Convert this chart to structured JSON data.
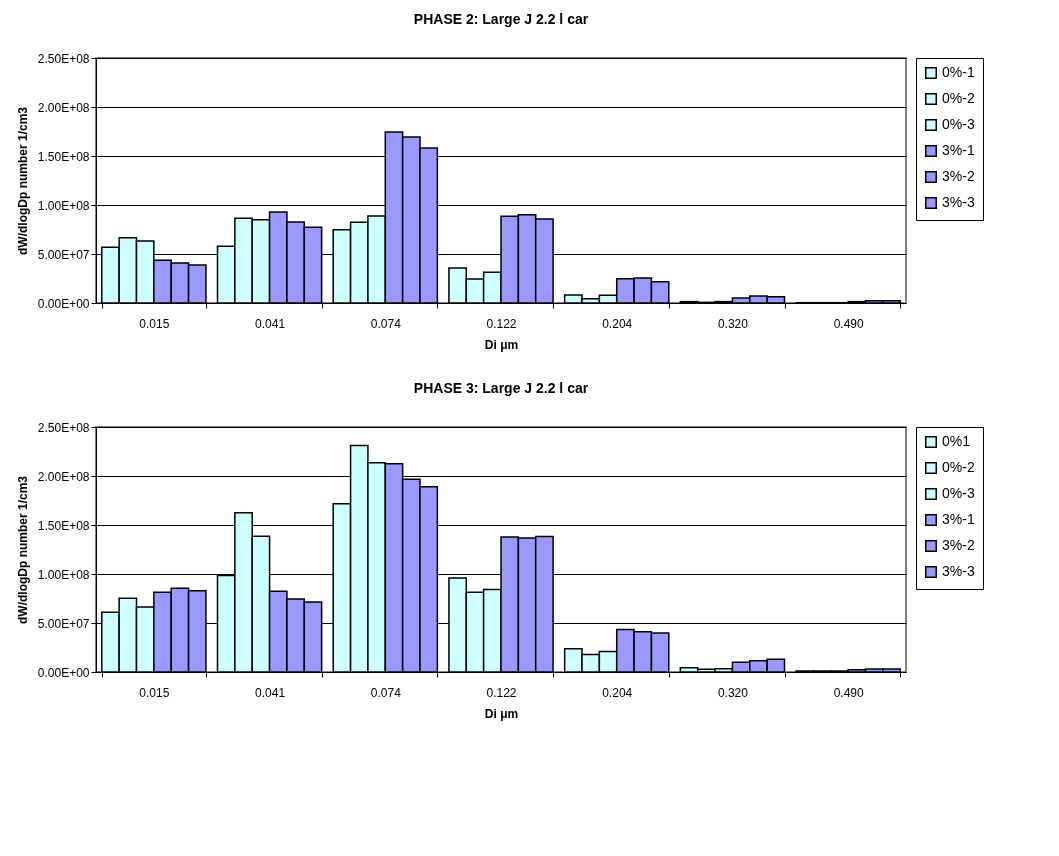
{
  "chart_data": [
    {
      "type": "bar",
      "title": "PHASE 2: Large J 2.2 l car",
      "xlabel": "Di μm",
      "ylabel": "dW/dlogDp number 1/cm3",
      "categories": [
        "0.015",
        "0.041",
        "0.074",
        "0.122",
        "0.204",
        "0.320",
        "0.490"
      ],
      "series": [
        {
          "name": "0%-1",
          "color": "#ccffff",
          "values": [
            56800000.0,
            57800000.0,
            74800000.0,
            35700000.0,
            8200000.0,
            1400000.0,
            300000.0
          ]
        },
        {
          "name": "0%-2",
          "color": "#ccffff",
          "values": [
            66700000.0,
            86400000.0,
            82300000.0,
            24500000.0,
            4400000.0,
            700000.0,
            300000.0
          ]
        },
        {
          "name": "0%-3",
          "color": "#ccffff",
          "values": [
            63300000.0,
            85000000.0,
            88800000.0,
            31300000.0,
            7800000.0,
            1400000.0,
            300000.0
          ]
        },
        {
          "name": "3%-1",
          "color": "#9999ff",
          "values": [
            43500000.0,
            92900000.0,
            174500000.0,
            88400000.0,
            24800000.0,
            5100000.0,
            1400000.0
          ]
        },
        {
          "name": "3%-2",
          "color": "#9999ff",
          "values": [
            40800000.0,
            82700000.0,
            169400000.0,
            90000000.0,
            25500000.0,
            7100000.0,
            2400000.0
          ]
        },
        {
          "name": "3%-3",
          "color": "#9999ff",
          "values": [
            38800000.0,
            77200000.0,
            158200000.0,
            85700000.0,
            21800000.0,
            6500000.0,
            2400000.0
          ]
        }
      ],
      "ylim": [
        0,
        250000000.0
      ],
      "yticks": [
        {
          "value": 0,
          "label": "0.00E+00"
        },
        {
          "value": 50000000.0,
          "label": "5.00E+07"
        },
        {
          "value": 100000000.0,
          "label": "1.00E+08"
        },
        {
          "value": 150000000.0,
          "label": "1.50E+08"
        },
        {
          "value": 200000000.0,
          "label": "2.00E+08"
        },
        {
          "value": 250000000.0,
          "label": "2.50E+08"
        }
      ],
      "grid": "y",
      "legend": "right"
    },
    {
      "type": "bar",
      "title": "PHASE 3: Large J 2.2 l car",
      "xlabel": "Di μm",
      "ylabel": "dW/dlogDp number 1/cm3",
      "categories": [
        "0.015",
        "0.041",
        "0.074",
        "0.122",
        "0.204",
        "0.320",
        "0.490"
      ],
      "series": [
        {
          "name": "0%1",
          "color": "#ccffff",
          "values": [
            60900000.0,
            98500000.0,
            171700000.0,
            95800000.0,
            23600000.0,
            4400000.0,
            1000000.0
          ]
        },
        {
          "name": "0%-2",
          "color": "#ccffff",
          "values": [
            75200000.0,
            162500000.0,
            231200000.0,
            81400000.0,
            17800000.0,
            2700000.0,
            1000000.0
          ]
        },
        {
          "name": "0%-3",
          "color": "#ccffff",
          "values": [
            66300000.0,
            138500000.0,
            213400000.0,
            84100000.0,
            20900000.0,
            3400000.0,
            1000000.0
          ]
        },
        {
          "name": "3%-1",
          "color": "#9999ff",
          "values": [
            81400000.0,
            82400000.0,
            212400000.0,
            137800000.0,
            43400000.0,
            9900000.0,
            2400000.0
          ]
        },
        {
          "name": "3%-2",
          "color": "#9999ff",
          "values": [
            85500000.0,
            74600000.0,
            196700000.0,
            136800000.0,
            41000000.0,
            11600000.0,
            3100000.0
          ]
        },
        {
          "name": "3%-3",
          "color": "#9999ff",
          "values": [
            82800000.0,
            71500000.0,
            189100000.0,
            138200000.0,
            39700000.0,
            13000000.0,
            3100000.0
          ]
        }
      ],
      "ylim": [
        0,
        250000000.0
      ],
      "yticks": [
        {
          "value": 0,
          "label": "0.00E+00"
        },
        {
          "value": 50000000.0,
          "label": "5.00E+07"
        },
        {
          "value": 100000000.0,
          "label": "1.00E+08"
        },
        {
          "value": 150000000.0,
          "label": "1.50E+08"
        },
        {
          "value": 200000000.0,
          "label": "2.00E+08"
        },
        {
          "value": 250000000.0,
          "label": "2.50E+08"
        }
      ],
      "grid": "y",
      "legend": "right"
    }
  ]
}
